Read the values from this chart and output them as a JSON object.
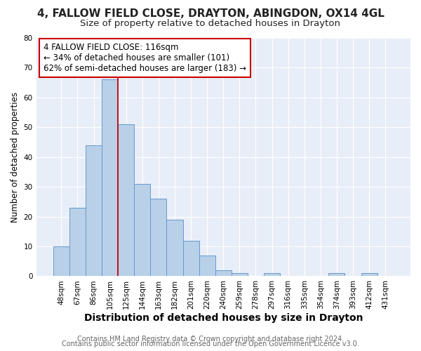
{
  "title1": "4, FALLOW FIELD CLOSE, DRAYTON, ABINGDON, OX14 4GL",
  "title2": "Size of property relative to detached houses in Drayton",
  "xlabel": "Distribution of detached houses by size in Drayton",
  "ylabel": "Number of detached properties",
  "bar_labels": [
    "48sqm",
    "67sqm",
    "86sqm",
    "105sqm",
    "125sqm",
    "144sqm",
    "163sqm",
    "182sqm",
    "201sqm",
    "220sqm",
    "240sqm",
    "259sqm",
    "278sqm",
    "297sqm",
    "316sqm",
    "335sqm",
    "354sqm",
    "374sqm",
    "393sqm",
    "412sqm",
    "431sqm"
  ],
  "bar_values": [
    10,
    23,
    44,
    66,
    51,
    31,
    26,
    19,
    12,
    7,
    2,
    1,
    0,
    1,
    0,
    0,
    0,
    1,
    0,
    1,
    0
  ],
  "bar_color": "#b8d0e8",
  "bar_edge_color": "#6699cc",
  "ylim": [
    0,
    80
  ],
  "yticks": [
    0,
    10,
    20,
    30,
    40,
    50,
    60,
    70,
    80
  ],
  "vline_x": 3.5,
  "annotation_line1": "4 FALLOW FIELD CLOSE: 116sqm",
  "annotation_line2": "← 34% of detached houses are smaller (101)",
  "annotation_line3": "62% of semi-detached houses are larger (183) →",
  "annotation_box_color": "#ffffff",
  "annotation_box_edge_color": "#cc0000",
  "vline_color": "#cc0000",
  "footer1": "Contains HM Land Registry data © Crown copyright and database right 2024.",
  "footer2": "Contains public sector information licensed under the Open Government Licence v3.0.",
  "plot_bg_color": "#e8eef8",
  "fig_bg_color": "#ffffff",
  "grid_color": "#ffffff",
  "title1_fontsize": 11,
  "title2_fontsize": 9.5,
  "xlabel_fontsize": 10,
  "ylabel_fontsize": 8.5,
  "tick_fontsize": 7.5,
  "annot_fontsize": 8.5,
  "footer_fontsize": 7
}
